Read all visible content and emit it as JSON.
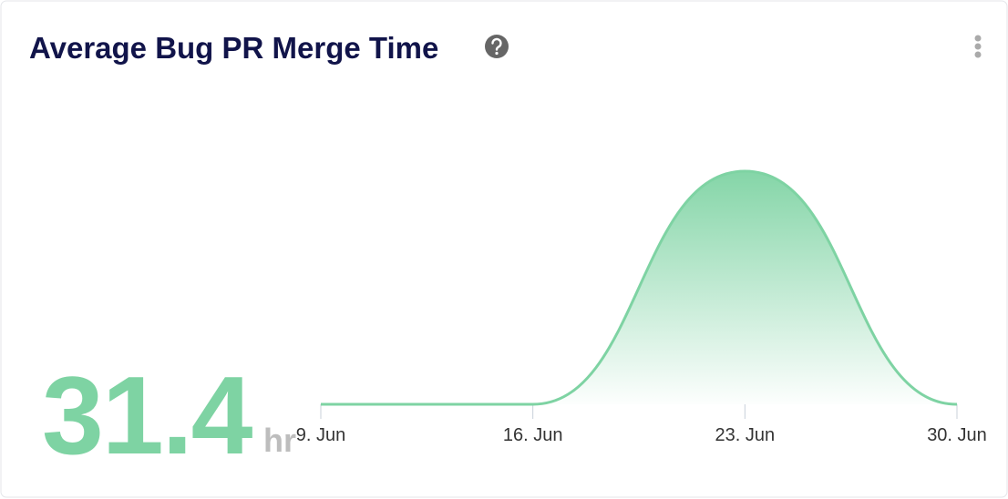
{
  "chart_data": {
    "type": "area",
    "title": "Average Bug PR Merge Time",
    "categories": [
      "9. Jun",
      "16. Jun",
      "23. Jun",
      "30. Jun"
    ],
    "series": [
      {
        "color": "#7ed3a3",
        "values": [
          0,
          0,
          100,
          0
        ]
      }
    ],
    "ylim": [
      0,
      100
    ],
    "grid": false
  },
  "summary": {
    "value": 31.4,
    "unit": "hr"
  }
}
